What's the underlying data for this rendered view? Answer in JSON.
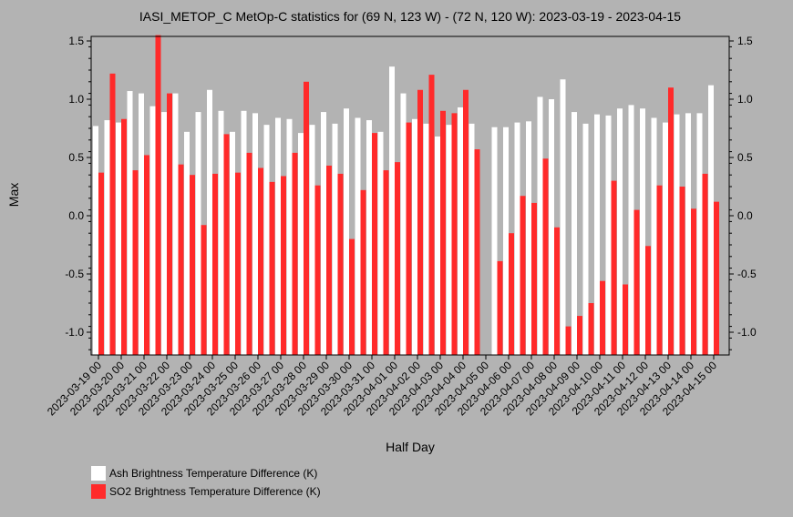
{
  "chart_data": {
    "type": "bar",
    "title": "IASI_METOP_C MetOp-C statistics for (69 N, 123 W) - (72 N, 120 W): 2023-03-19 - 2023-04-15",
    "xlabel": "Half Day",
    "ylabel": "Max",
    "ylim": [
      -1.2,
      1.55
    ],
    "yticks": [
      "1.5",
      "1.0",
      "0.5",
      "0.0",
      "-0.5",
      "-1.0"
    ],
    "ytick_values": [
      1.5,
      1.0,
      0.5,
      0.0,
      -0.5,
      -1.0
    ],
    "grid": false,
    "legend_position": "bottom-left",
    "tick_labels": [
      "2023-03-19 00",
      "2023-03-20 00",
      "2023-03-21 00",
      "2023-03-22 00",
      "2023-03-23 00",
      "2023-03-24 00",
      "2023-03-25 00",
      "2023-03-26 00",
      "2023-03-27 00",
      "2023-03-28 00",
      "2023-03-29 00",
      "2023-03-30 00",
      "2023-03-31 00",
      "2023-04-01 00",
      "2023-04-02 00",
      "2023-04-03 00",
      "2023-04-04 00",
      "2023-04-05 00",
      "2023-04-06 00",
      "2023-04-07 00",
      "2023-04-08 00",
      "2023-04-09 00",
      "2023-04-10 00",
      "2023-04-11 00",
      "2023-04-12 00",
      "2023-04-13 00",
      "2023-04-14 00",
      "2023-04-15 00"
    ],
    "series": [
      {
        "name": "Ash Brightness Temperature Difference (K)",
        "color": "#ffffff",
        "values": [
          0.77,
          0.82,
          0.8,
          1.07,
          1.05,
          0.94,
          0.89,
          1.05,
          0.72,
          0.89,
          1.08,
          0.9,
          0.72,
          0.9,
          0.88,
          0.78,
          0.84,
          0.83,
          0.71,
          0.78,
          0.89,
          0.79,
          0.92,
          0.84,
          0.82,
          0.72,
          1.28,
          1.05,
          0.83,
          0.79,
          0.68,
          0.78,
          0.93,
          0.79,
          null,
          0.76,
          0.76,
          0.8,
          0.81,
          1.02,
          1.0,
          1.17,
          0.89,
          0.79,
          0.87,
          0.86,
          0.92,
          0.95,
          0.92,
          0.84,
          0.8,
          0.87,
          0.88,
          0.88,
          1.12
        ]
      },
      {
        "name": "SO2 Brightness Temperature Difference (K)",
        "color": "#ff2a2a",
        "values": [
          0.37,
          1.22,
          0.83,
          0.39,
          0.52,
          1.55,
          1.05,
          0.44,
          0.35,
          -0.08,
          0.36,
          0.7,
          0.37,
          0.54,
          0.41,
          0.29,
          0.34,
          0.54,
          1.15,
          0.26,
          0.43,
          0.36,
          -0.2,
          0.22,
          0.71,
          0.39,
          0.46,
          0.8,
          1.08,
          1.21,
          0.9,
          0.88,
          1.08,
          0.57,
          null,
          -0.39,
          -0.15,
          0.17,
          0.11,
          0.49,
          -0.1,
          -0.95,
          -0.86,
          -0.75,
          -0.56,
          0.3,
          -0.59,
          0.05,
          -0.26,
          0.26,
          1.1,
          0.25,
          0.06,
          0.36,
          0.12
        ]
      }
    ]
  }
}
